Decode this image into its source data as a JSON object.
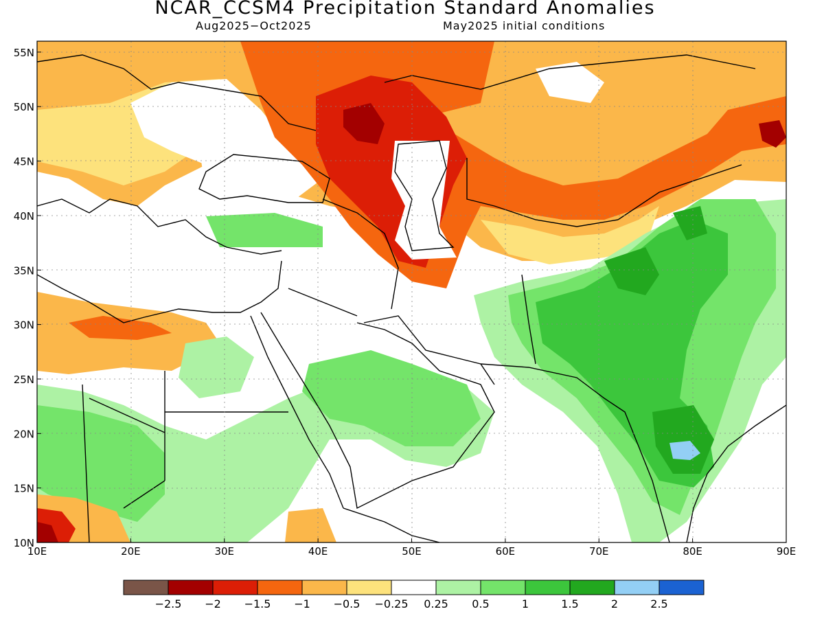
{
  "header": {
    "title": "NCAR_CCSM4 Precipitation Standard Anomalies",
    "period": "Aug2025−Oct2025",
    "init": "May2025 initial conditions"
  },
  "map": {
    "lon_range": [
      10,
      90
    ],
    "lat_range": [
      10,
      56
    ],
    "lon_ticks": [
      "10E",
      "20E",
      "30E",
      "40E",
      "50E",
      "60E",
      "70E",
      "80E",
      "90E"
    ],
    "lat_ticks": [
      "10N",
      "15N",
      "20N",
      "25N",
      "30N",
      "35N",
      "40N",
      "45N",
      "50N",
      "55N"
    ],
    "grid": true
  },
  "colorbar": {
    "colors": [
      "#7a5548",
      "#a30000",
      "#dc1e06",
      "#f5660f",
      "#fbb74a",
      "#fde27c",
      "#ffffff",
      "#adf2a4",
      "#74e46a",
      "#3cc63c",
      "#22a81f",
      "#93cff5",
      "#1b62d2"
    ],
    "labels": [
      "−2.5",
      "−2",
      "−1.5",
      "−1",
      "−0.5",
      "−0.25",
      "0.25",
      "0.5",
      "1",
      "1.5",
      "2",
      "2.5"
    ]
  }
}
